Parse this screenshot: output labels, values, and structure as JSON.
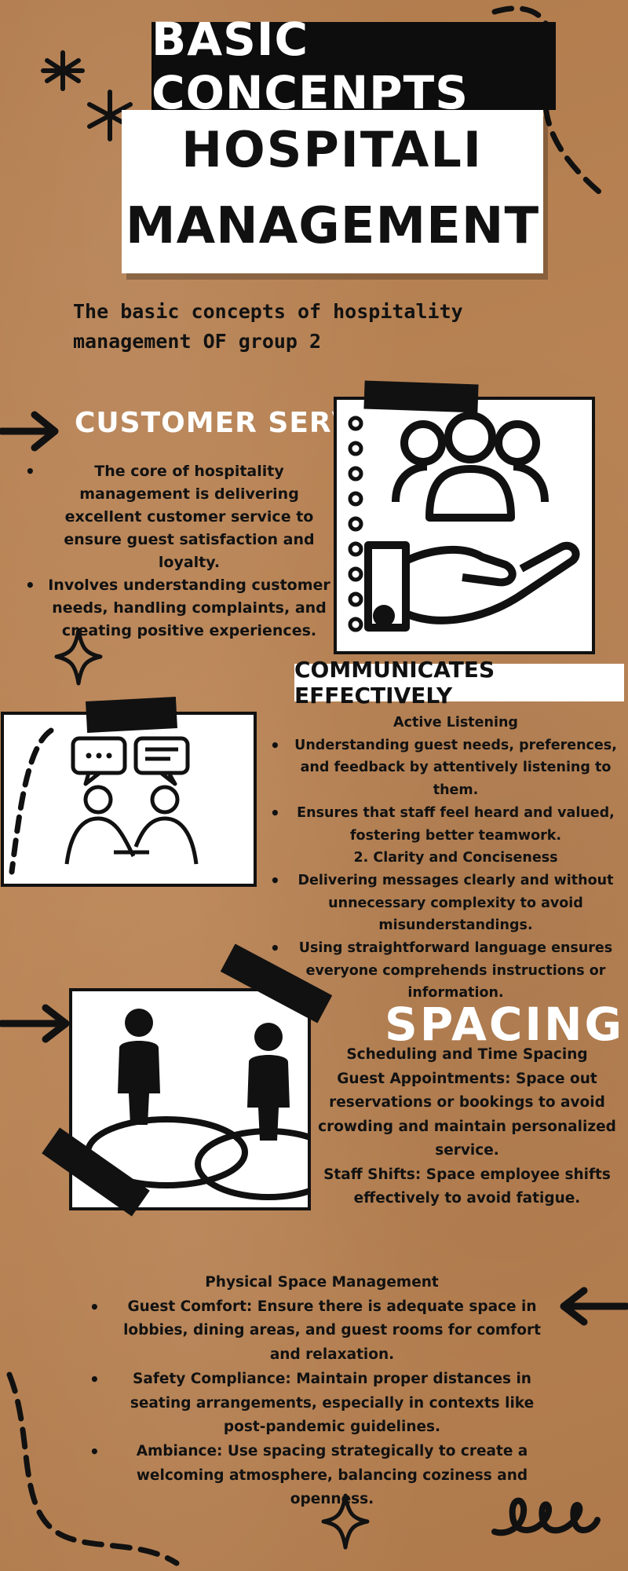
{
  "title": {
    "line1": "BASIC CONCENPTS",
    "line2": "HOSPITALI",
    "line3": "MANAGEMENT"
  },
  "subtitle": "The basic concepts of hospitality management OF group 2",
  "customer_service": {
    "heading": "CUSTOMER SERVICE",
    "bullets": [
      "The core of hospitality management is delivering excellent customer service to ensure guest satisfaction and loyalty.",
      "Involves understanding customer needs, handling complaints, and creating positive experiences."
    ]
  },
  "communicates": {
    "heading": "COMMUNICATES EFFECTIVELY",
    "sub1": "Active Listening",
    "sub1_bullets": [
      "Understanding guest needs, preferences, and feedback by attentively listening to them.",
      "Ensures that staff feel heard and valued, fostering better teamwork."
    ],
    "sub2": "2. Clarity and Conciseness",
    "sub2_bullets": [
      "Delivering messages clearly and without unnecessary complexity to avoid misunderstandings.",
      "Using straightforward language ensures everyone comprehends instructions or information."
    ]
  },
  "spacing": {
    "heading": "SPACING",
    "lines": [
      "Scheduling and Time Spacing",
      "Guest Appointments: Space out reservations or bookings to avoid crowding and maintain personalized service.",
      "Staff Shifts: Space employee shifts effectively to avoid fatigue."
    ]
  },
  "physical": {
    "heading": "Physical Space Management",
    "bullets": [
      "Guest Comfort: Ensure there is adequate space in lobbies, dining areas, and guest rooms for comfort and relaxation.",
      "Safety Compliance: Maintain proper distances in seating arrangements, especially in contexts like post-pandemic guidelines.",
      "Ambiance: Use spacing strategically to create a welcoming atmosphere, balancing coziness and openness."
    ]
  },
  "icons": [
    "asterisk-icon",
    "arrow-right-icon",
    "arrow-left-icon",
    "sparkle-icon",
    "swirl-icon",
    "group-hand-icon",
    "conversation-icon",
    "people-spacing-icon"
  ],
  "colors": {
    "background": "#b8804f",
    "ink": "#111111",
    "white": "#ffffff"
  }
}
